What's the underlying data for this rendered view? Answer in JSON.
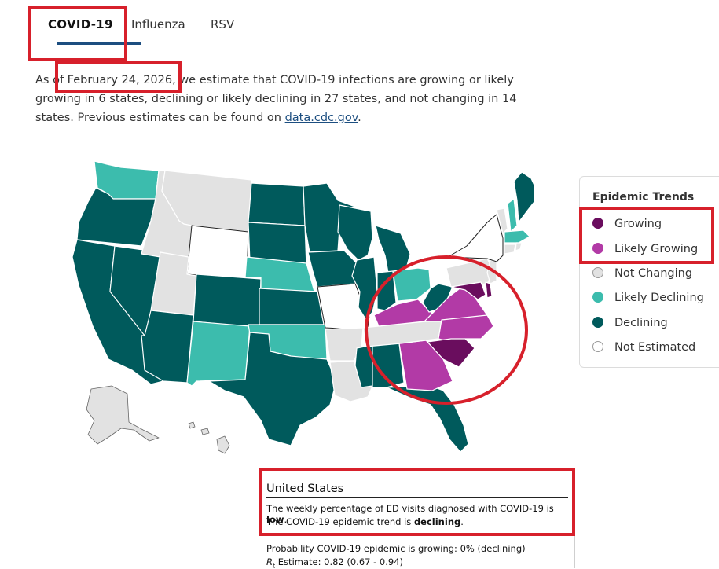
{
  "tabs": [
    {
      "label": "COVID-19",
      "active": true
    },
    {
      "label": "Influenza",
      "active": false
    },
    {
      "label": "RSV",
      "active": false
    }
  ],
  "intro": {
    "prefix": "As of ",
    "date": "February 24, 2026,",
    "middle": " we estimate that COVID-19 infections are growing or likely growing in 6 states, declining or likely declining in 27 states, and not changing in 14 states. Previous estimates can be found on ",
    "link": "data.cdc.gov",
    "suffix": "."
  },
  "legend": {
    "title": "Epidemic Trends",
    "items": [
      {
        "label": "Growing",
        "color": "#6a0d5e"
      },
      {
        "label": "Likely Growing",
        "color": "#b23aa6"
      },
      {
        "label": "Not Changing",
        "color": "#e2e2e2"
      },
      {
        "label": "Likely Declining",
        "color": "#3cbcad"
      },
      {
        "label": "Declining",
        "color": "#005a5c"
      },
      {
        "label": "Not Estimated",
        "color": "#ffffff"
      }
    ]
  },
  "popup": {
    "title": "United States",
    "level_pre": "The weekly percentage of ED visits diagnosed with COVID-19 is ",
    "level": "low",
    "level_post": ".",
    "trend_pre": "The COVID-19 epidemic trend is ",
    "trend": "declining",
    "trend_post": ".",
    "probability": "Probability COVID-19 epidemic is growing: 0% (declining)",
    "rt_symbol": "R",
    "rt_sub": "t",
    "rt_estimate": " Estimate: 0.82 (0.67 - 0.94)"
  },
  "colors": {
    "growing": "#6a0d5e",
    "likely_growing": "#b23aa6",
    "not_changing": "#e2e2e2",
    "likely_declining": "#3cbcad",
    "declining": "#005a5c",
    "not_estimated": "#ffffff",
    "highlight": "#d7202b",
    "tab_accent": "#1c4e80"
  }
}
